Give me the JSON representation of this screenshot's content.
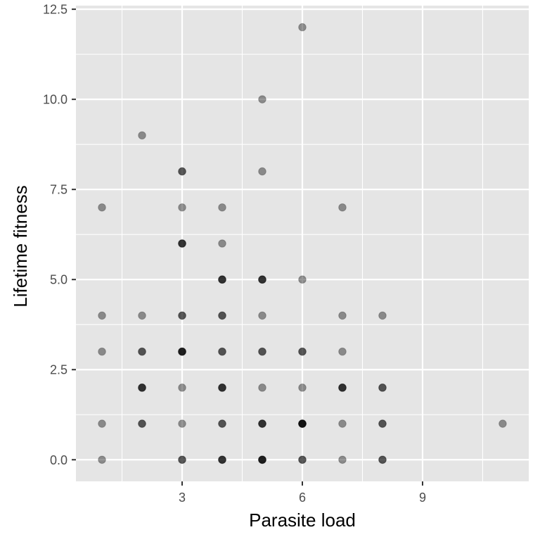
{
  "chart_data": {
    "type": "scatter",
    "xlabel": "Parasite load",
    "ylabel": "Lifetime fitness",
    "xlim": [
      0.35,
      11.65
    ],
    "ylim": [
      -0.6,
      12.6
    ],
    "x_ticks": [
      3,
      6,
      9
    ],
    "x_tick_labels": [
      "3",
      "6",
      "9"
    ],
    "y_ticks": [
      0,
      2.5,
      5,
      7.5,
      10,
      12.5
    ],
    "y_tick_labels": [
      "0.0",
      "2.5",
      "5.0",
      "7.5",
      "10.0",
      "12.5"
    ],
    "grid": true,
    "panel_background": "#e5e5e5",
    "grid_color": "#ffffff",
    "point_color": "#000000",
    "point_alpha": 0.4,
    "points": [
      {
        "x": 1,
        "y": 7
      },
      {
        "x": 1,
        "y": 4
      },
      {
        "x": 1,
        "y": 3
      },
      {
        "x": 1,
        "y": 1
      },
      {
        "x": 1,
        "y": 0
      },
      {
        "x": 2,
        "y": 9
      },
      {
        "x": 2,
        "y": 4
      },
      {
        "x": 2,
        "y": 3
      },
      {
        "x": 2,
        "y": 3
      },
      {
        "x": 2,
        "y": 2
      },
      {
        "x": 2,
        "y": 2
      },
      {
        "x": 2,
        "y": 2
      },
      {
        "x": 2,
        "y": 1
      },
      {
        "x": 2,
        "y": 1
      },
      {
        "x": 3,
        "y": 8
      },
      {
        "x": 3,
        "y": 8
      },
      {
        "x": 3,
        "y": 7
      },
      {
        "x": 3,
        "y": 6
      },
      {
        "x": 3,
        "y": 6
      },
      {
        "x": 3,
        "y": 6
      },
      {
        "x": 3,
        "y": 4
      },
      {
        "x": 3,
        "y": 4
      },
      {
        "x": 3,
        "y": 3
      },
      {
        "x": 3,
        "y": 3
      },
      {
        "x": 3,
        "y": 3
      },
      {
        "x": 3,
        "y": 3
      },
      {
        "x": 3,
        "y": 2
      },
      {
        "x": 3,
        "y": 1
      },
      {
        "x": 3,
        "y": 0
      },
      {
        "x": 3,
        "y": 0
      },
      {
        "x": 4,
        "y": 7
      },
      {
        "x": 4,
        "y": 6
      },
      {
        "x": 4,
        "y": 5
      },
      {
        "x": 4,
        "y": 5
      },
      {
        "x": 4,
        "y": 5
      },
      {
        "x": 4,
        "y": 4
      },
      {
        "x": 4,
        "y": 4
      },
      {
        "x": 4,
        "y": 3
      },
      {
        "x": 4,
        "y": 3
      },
      {
        "x": 4,
        "y": 2
      },
      {
        "x": 4,
        "y": 2
      },
      {
        "x": 4,
        "y": 2
      },
      {
        "x": 4,
        "y": 1
      },
      {
        "x": 4,
        "y": 1
      },
      {
        "x": 4,
        "y": 0
      },
      {
        "x": 4,
        "y": 0
      },
      {
        "x": 4,
        "y": 0
      },
      {
        "x": 5,
        "y": 10
      },
      {
        "x": 5,
        "y": 8
      },
      {
        "x": 5,
        "y": 5
      },
      {
        "x": 5,
        "y": 5
      },
      {
        "x": 5,
        "y": 5
      },
      {
        "x": 5,
        "y": 4
      },
      {
        "x": 5,
        "y": 3
      },
      {
        "x": 5,
        "y": 3
      },
      {
        "x": 5,
        "y": 2
      },
      {
        "x": 5,
        "y": 1
      },
      {
        "x": 5,
        "y": 1
      },
      {
        "x": 5,
        "y": 1
      },
      {
        "x": 5,
        "y": 0
      },
      {
        "x": 5,
        "y": 0
      },
      {
        "x": 5,
        "y": 0
      },
      {
        "x": 5,
        "y": 0
      },
      {
        "x": 6,
        "y": 12
      },
      {
        "x": 6,
        "y": 5
      },
      {
        "x": 6,
        "y": 3
      },
      {
        "x": 6,
        "y": 3
      },
      {
        "x": 6,
        "y": 2
      },
      {
        "x": 6,
        "y": 1
      },
      {
        "x": 6,
        "y": 1
      },
      {
        "x": 6,
        "y": 1
      },
      {
        "x": 6,
        "y": 1
      },
      {
        "x": 6,
        "y": 1
      },
      {
        "x": 6,
        "y": 0
      },
      {
        "x": 6,
        "y": 0
      },
      {
        "x": 7,
        "y": 7
      },
      {
        "x": 7,
        "y": 4
      },
      {
        "x": 7,
        "y": 3
      },
      {
        "x": 7,
        "y": 2
      },
      {
        "x": 7,
        "y": 2
      },
      {
        "x": 7,
        "y": 2
      },
      {
        "x": 7,
        "y": 1
      },
      {
        "x": 7,
        "y": 0
      },
      {
        "x": 8,
        "y": 4
      },
      {
        "x": 8,
        "y": 2
      },
      {
        "x": 8,
        "y": 2
      },
      {
        "x": 8,
        "y": 1
      },
      {
        "x": 8,
        "y": 1
      },
      {
        "x": 8,
        "y": 0
      },
      {
        "x": 8,
        "y": 0
      },
      {
        "x": 11,
        "y": 1
      }
    ]
  }
}
